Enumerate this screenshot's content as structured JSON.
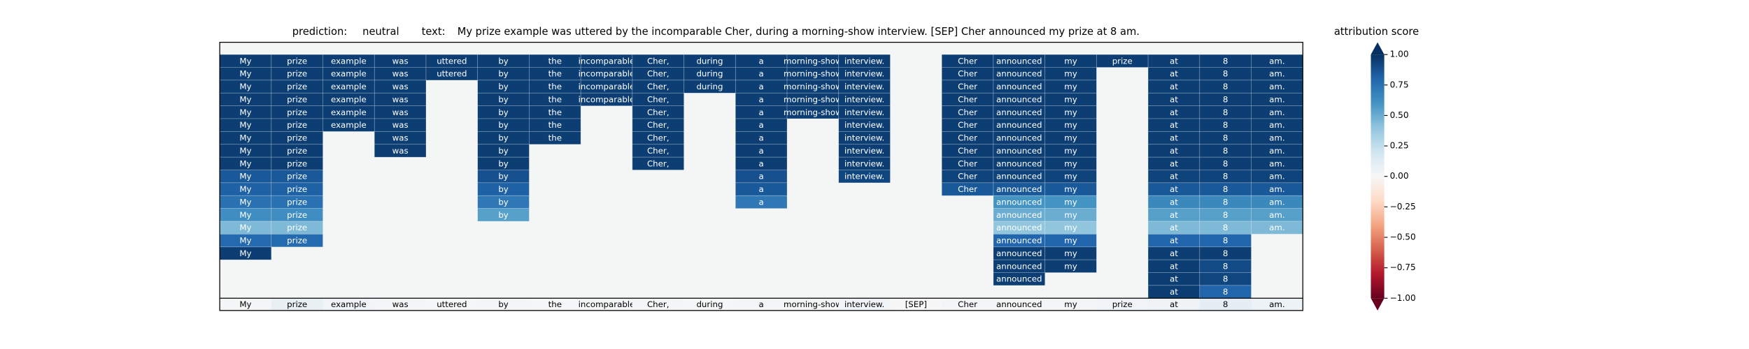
{
  "header": {
    "prediction_label": "prediction:",
    "prediction": "neutral",
    "text_label": "text:",
    "text": "My prize example was uttered by the incomparable Cher, during a morning-show interview. [SEP] Cher announced my prize at 8 am."
  },
  "heatmap": {
    "tokens": [
      "My",
      "prize",
      "example",
      "was",
      "uttered",
      "by",
      "the",
      "incomparable",
      "Cher,",
      "during",
      "a",
      "morning-show",
      "interview.",
      "[SEP]",
      "Cher",
      "announced",
      "my",
      "prize",
      "at",
      "8",
      "am."
    ],
    "rows": [
      [
        0.95,
        0.95,
        0.95,
        0.95,
        0.95,
        0.95,
        0.95,
        0.95,
        0.95,
        0.95,
        0.95,
        0.95,
        0.95,
        null,
        0.95,
        0.95,
        0.95,
        0.95,
        0.95,
        0.95,
        0.95
      ],
      [
        0.95,
        0.95,
        0.95,
        0.95,
        0.95,
        0.95,
        0.95,
        0.95,
        0.95,
        0.95,
        0.95,
        0.95,
        0.95,
        null,
        0.95,
        0.95,
        0.95,
        null,
        0.95,
        0.95,
        0.95
      ],
      [
        0.95,
        0.95,
        0.95,
        0.95,
        null,
        0.95,
        0.95,
        0.95,
        0.95,
        0.95,
        0.95,
        0.95,
        0.95,
        null,
        0.95,
        0.95,
        0.95,
        null,
        0.95,
        0.95,
        0.95
      ],
      [
        0.95,
        0.95,
        0.95,
        0.95,
        null,
        0.95,
        0.95,
        0.95,
        0.95,
        null,
        0.95,
        0.95,
        0.95,
        null,
        0.95,
        0.95,
        0.95,
        null,
        0.95,
        0.95,
        0.95
      ],
      [
        0.95,
        0.95,
        0.95,
        0.95,
        null,
        0.95,
        0.95,
        null,
        0.95,
        null,
        0.95,
        0.95,
        0.95,
        null,
        0.95,
        0.95,
        0.95,
        null,
        0.95,
        0.95,
        0.95
      ],
      [
        0.95,
        0.95,
        0.95,
        0.95,
        null,
        0.95,
        0.95,
        null,
        0.95,
        null,
        0.95,
        null,
        0.95,
        null,
        0.95,
        0.95,
        0.95,
        null,
        0.95,
        0.95,
        0.95
      ],
      [
        0.95,
        0.95,
        null,
        0.95,
        null,
        0.95,
        0.95,
        null,
        0.95,
        null,
        0.95,
        null,
        0.95,
        null,
        0.95,
        0.95,
        0.95,
        null,
        0.95,
        0.95,
        0.95
      ],
      [
        0.95,
        0.95,
        null,
        0.95,
        null,
        0.95,
        null,
        null,
        0.95,
        null,
        0.95,
        null,
        0.95,
        null,
        0.95,
        0.95,
        0.95,
        null,
        0.95,
        0.95,
        0.95
      ],
      [
        0.95,
        0.95,
        null,
        null,
        null,
        0.95,
        null,
        null,
        0.95,
        null,
        0.95,
        null,
        0.95,
        null,
        0.95,
        0.95,
        0.95,
        null,
        0.95,
        0.95,
        0.95
      ],
      [
        0.85,
        0.85,
        null,
        null,
        null,
        0.88,
        null,
        null,
        null,
        null,
        0.88,
        null,
        0.92,
        null,
        0.93,
        0.93,
        0.93,
        null,
        0.93,
        0.93,
        0.93
      ],
      [
        0.82,
        0.82,
        null,
        null,
        null,
        0.82,
        null,
        null,
        null,
        null,
        0.85,
        null,
        null,
        null,
        0.85,
        0.85,
        0.85,
        null,
        0.85,
        0.85,
        0.85
      ],
      [
        0.75,
        0.75,
        null,
        null,
        null,
        0.72,
        null,
        null,
        null,
        null,
        0.72,
        null,
        null,
        null,
        null,
        0.6,
        0.6,
        null,
        0.65,
        0.65,
        0.65
      ],
      [
        0.62,
        0.62,
        null,
        null,
        null,
        0.55,
        null,
        null,
        null,
        null,
        null,
        null,
        null,
        null,
        null,
        0.5,
        0.5,
        null,
        0.55,
        0.55,
        0.55
      ],
      [
        0.45,
        0.45,
        null,
        null,
        null,
        null,
        null,
        null,
        null,
        null,
        null,
        null,
        null,
        null,
        null,
        0.4,
        0.4,
        null,
        0.45,
        0.45,
        0.45
      ],
      [
        0.78,
        0.78,
        null,
        null,
        null,
        null,
        null,
        null,
        null,
        null,
        null,
        null,
        null,
        null,
        null,
        0.8,
        0.8,
        null,
        0.8,
        0.8,
        null
      ],
      [
        0.95,
        null,
        null,
        null,
        null,
        null,
        null,
        null,
        null,
        null,
        null,
        null,
        null,
        null,
        null,
        0.95,
        0.95,
        null,
        0.95,
        0.95,
        null
      ],
      [
        null,
        null,
        null,
        null,
        null,
        null,
        null,
        null,
        null,
        null,
        null,
        null,
        null,
        null,
        null,
        0.95,
        0.95,
        null,
        0.95,
        0.9,
        null
      ],
      [
        null,
        null,
        null,
        null,
        null,
        null,
        null,
        null,
        null,
        null,
        null,
        null,
        null,
        null,
        null,
        0.95,
        null,
        null,
        0.95,
        0.92,
        null
      ],
      [
        null,
        null,
        null,
        null,
        null,
        null,
        null,
        null,
        null,
        null,
        null,
        null,
        null,
        null,
        null,
        null,
        null,
        null,
        0.95,
        0.8,
        null
      ]
    ],
    "base_values": [
      0.02,
      0.08,
      0.03,
      0.02,
      0.01,
      0.02,
      0.01,
      0.02,
      0.02,
      0.01,
      0.02,
      0.02,
      0.03,
      0,
      0.02,
      0.02,
      0.02,
      0.03,
      0.04,
      0.1,
      0.06
    ]
  },
  "colorbar": {
    "title": "attribution score",
    "lim": [
      -1,
      1
    ],
    "ticks": [
      {
        "value": 1,
        "label": "1.00"
      },
      0.75,
      {
        "value": 0.5,
        "label": "0.50"
      },
      0.25,
      {
        "value": 0,
        "label": "0.00"
      },
      {
        "value": -0.25,
        "label": "−0.25"
      },
      {
        "value": -0.5,
        "label": "−0.50"
      },
      {
        "value": -0.75,
        "label": "−0.75"
      },
      {
        "value": -1,
        "label": "−1.00"
      }
    ]
  }
}
